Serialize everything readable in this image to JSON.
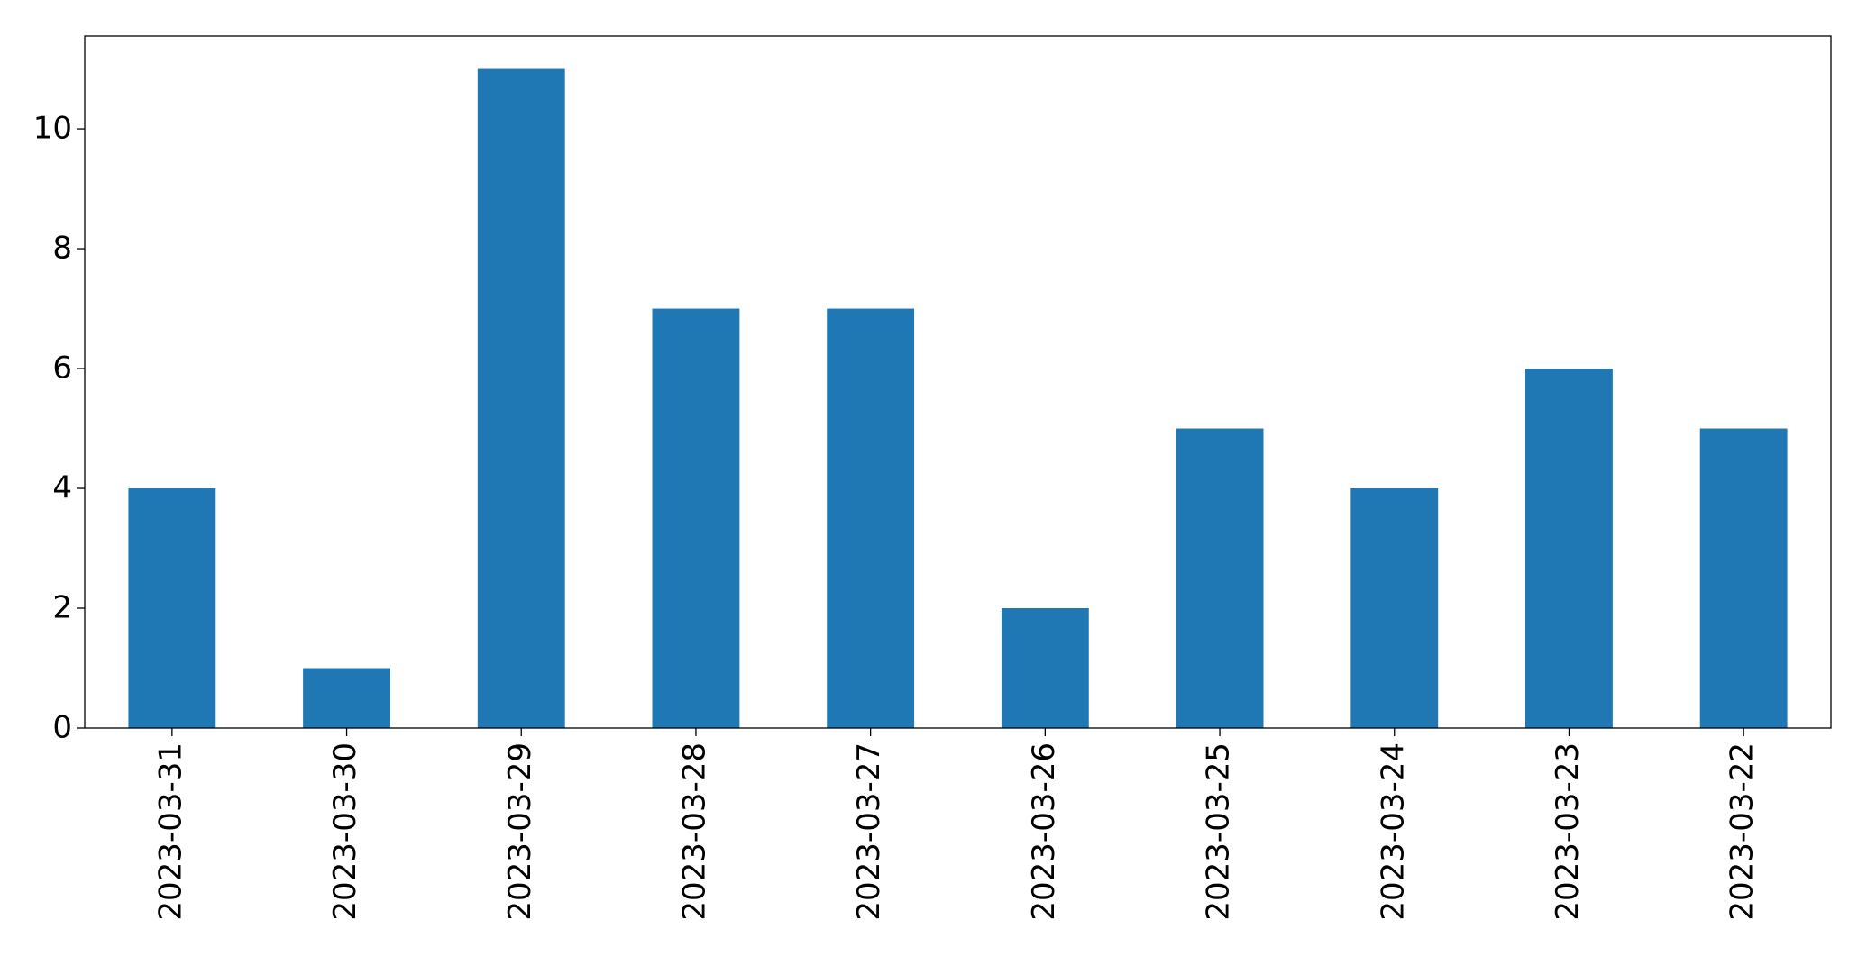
{
  "chart_data": {
    "type": "bar",
    "categories": [
      "2023-03-31",
      "2023-03-30",
      "2023-03-29",
      "2023-03-28",
      "2023-03-27",
      "2023-03-26",
      "2023-03-25",
      "2023-03-24",
      "2023-03-23",
      "2023-03-22"
    ],
    "values": [
      4,
      1,
      11,
      7,
      7,
      2,
      5,
      4,
      6,
      5
    ],
    "color": "#1f77b4",
    "ylim": [
      0,
      11.55
    ],
    "yticks": [
      0,
      2,
      4,
      6,
      8,
      10
    ],
    "grid": false
  }
}
